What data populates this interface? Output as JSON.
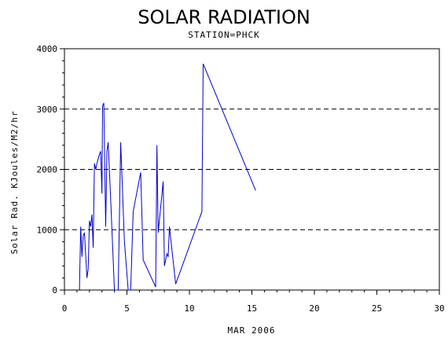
{
  "chart_data": {
    "type": "line",
    "title": "SOLAR RADIATION",
    "subtitle": "STATION=PHCK",
    "xlabel": "MAR 2006",
    "ylabel": "Solar Rad. KJoules/M2/hr",
    "xlim": [
      0,
      30
    ],
    "ylim": [
      0,
      4000
    ],
    "x_ticks": [
      0,
      5,
      10,
      15,
      20,
      25,
      30
    ],
    "y_ticks": [
      0,
      1000,
      2000,
      3000,
      4000
    ],
    "grid": "horizontal-dashed",
    "series_color": "#0000cc",
    "series": [
      {
        "points": [
          [
            1.2,
            0
          ],
          [
            1.3,
            1050
          ],
          [
            1.4,
            550
          ],
          [
            1.5,
            900
          ],
          [
            1.6,
            950
          ],
          [
            1.8,
            200
          ],
          [
            1.9,
            350
          ],
          [
            2.0,
            1150
          ],
          [
            2.1,
            1050
          ],
          [
            2.2,
            1250
          ],
          [
            2.3,
            700
          ],
          [
            2.4,
            2100
          ],
          [
            2.5,
            2000
          ],
          [
            2.6,
            2100
          ],
          [
            2.8,
            2250
          ],
          [
            2.9,
            2300
          ],
          [
            3.0,
            1600
          ],
          [
            3.05,
            3050
          ],
          [
            3.15,
            3100
          ],
          [
            3.3,
            1050
          ],
          [
            3.4,
            2300
          ],
          [
            3.5,
            2450
          ],
          [
            3.7,
            1500
          ],
          [
            4.0,
            0
          ],
          [
            4.3,
            0
          ],
          [
            4.5,
            2450
          ],
          [
            4.8,
            800
          ],
          [
            5.1,
            0
          ],
          [
            5.3,
            0
          ],
          [
            5.5,
            1300
          ],
          [
            6.1,
            1950
          ],
          [
            6.3,
            500
          ],
          [
            7.3,
            50
          ],
          [
            7.4,
            2400
          ],
          [
            7.5,
            950
          ],
          [
            7.9,
            1800
          ],
          [
            8.0,
            400
          ],
          [
            8.2,
            600
          ],
          [
            8.3,
            550
          ],
          [
            8.4,
            1050
          ],
          [
            8.9,
            100
          ],
          [
            11.0,
            1300
          ],
          [
            11.1,
            3750
          ],
          [
            15.3,
            1650
          ]
        ]
      }
    ]
  }
}
